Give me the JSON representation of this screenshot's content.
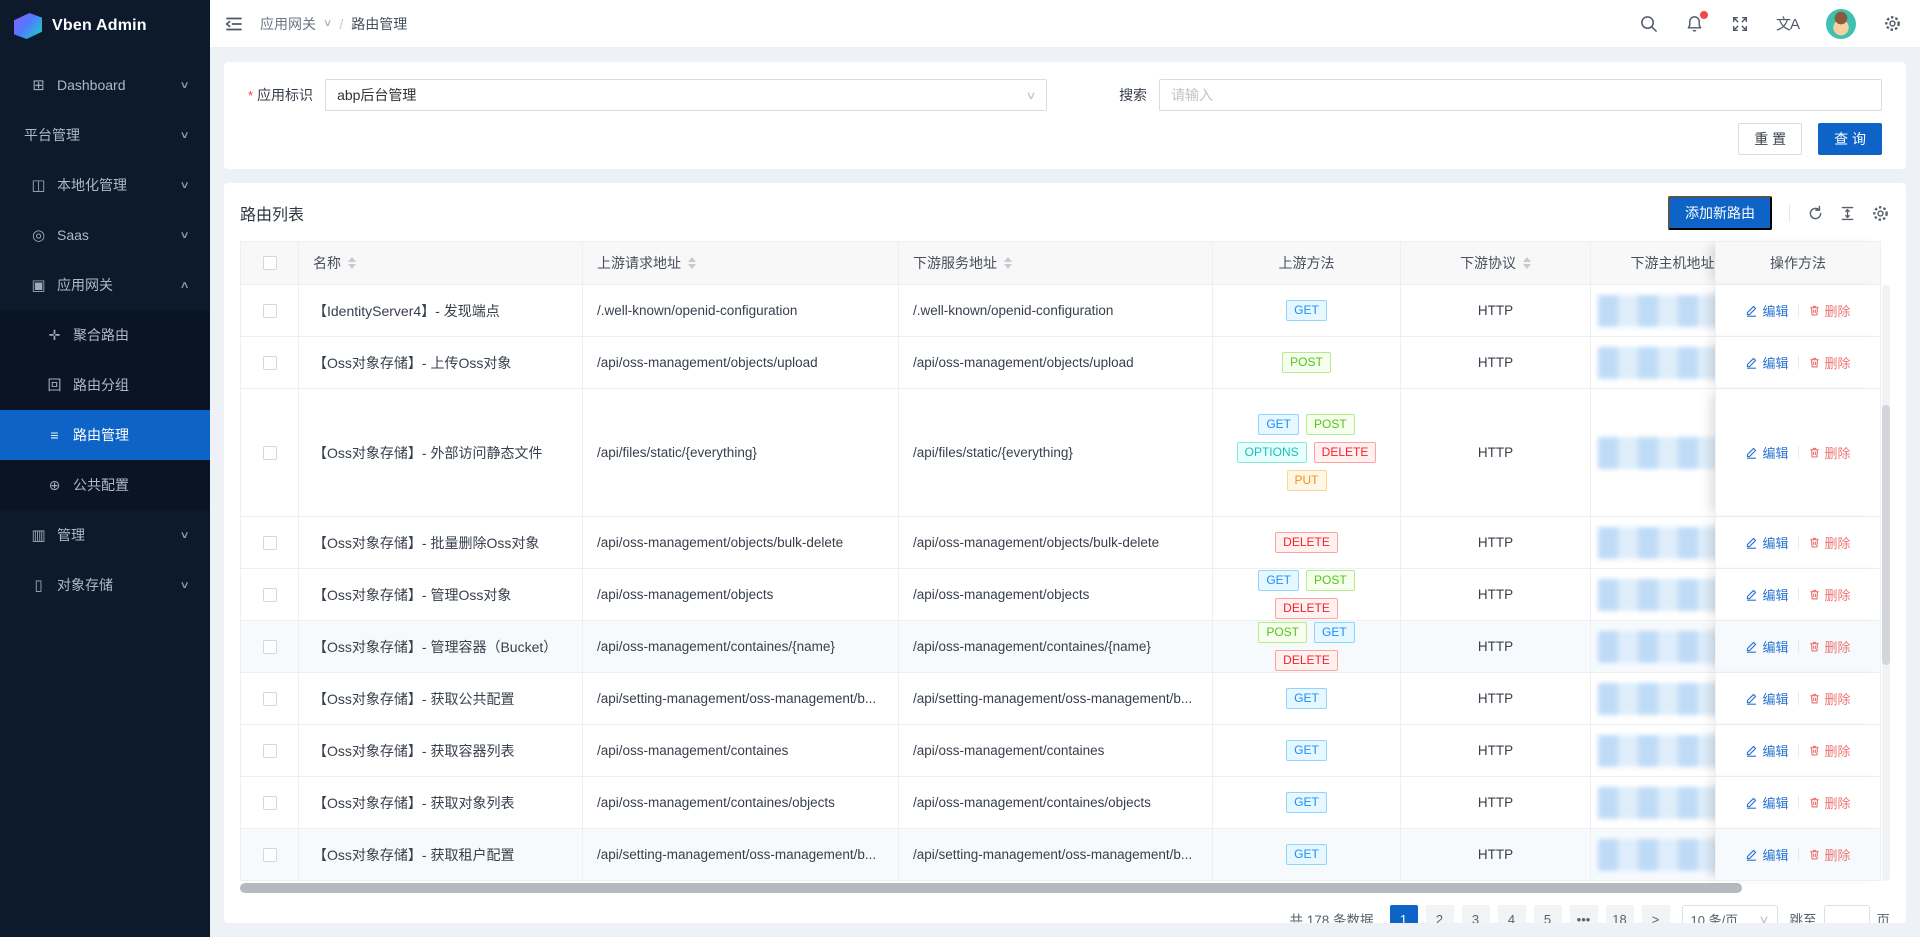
{
  "app": {
    "name": "Vben Admin"
  },
  "sidebar": {
    "items": [
      {
        "label": "Dashboard",
        "icon": "dashboard-icon",
        "caret": "down",
        "level": 1
      },
      {
        "label": "平台管理",
        "icon": null,
        "caret": "down",
        "level": 1
      },
      {
        "label": "本地化管理",
        "icon": "localization-icon",
        "caret": "down",
        "level": 1
      },
      {
        "label": "Saas",
        "icon": "saas-icon",
        "caret": "down",
        "level": 1
      },
      {
        "label": "应用网关",
        "icon": "gateway-icon",
        "caret": "up",
        "level": 1,
        "open": true
      },
      {
        "label": "聚合路由",
        "icon": "aggregate-route-icon",
        "level": 2
      },
      {
        "label": "路由分组",
        "icon": "route-group-icon",
        "level": 2
      },
      {
        "label": "路由管理",
        "icon": "route-manage-icon",
        "level": 2,
        "active": true
      },
      {
        "label": "公共配置",
        "icon": "public-config-icon",
        "level": 2
      },
      {
        "label": "管理",
        "icon": "manage-icon",
        "caret": "down",
        "level": 1
      },
      {
        "label": "对象存储",
        "icon": "object-storage-icon",
        "caret": "down",
        "level": 1
      }
    ]
  },
  "header": {
    "breadcrumb": {
      "parent": "应用网关",
      "separator": "/",
      "current": "路由管理"
    },
    "icons": [
      "search",
      "notification",
      "fullscreen",
      "locale",
      "avatar",
      "settings"
    ],
    "locale_glyph": "文A",
    "notification_badge": true
  },
  "filter": {
    "app_label": "应用标识",
    "app_value": "abp后台管理",
    "search_label": "搜索",
    "search_placeholder": "请输入",
    "reset_label": "重 置",
    "query_label": "查 询"
  },
  "table": {
    "title": "路由列表",
    "add_button_label": "添加新路由",
    "toolbar_icons": [
      "refresh",
      "column-height",
      "settings"
    ],
    "columns": [
      {
        "key": "checkbox",
        "label": "",
        "sortable": false
      },
      {
        "key": "name",
        "label": "名称",
        "sortable": true
      },
      {
        "key": "upstream",
        "label": "上游请求地址",
        "sortable": true
      },
      {
        "key": "downstream",
        "label": "下游服务地址",
        "sortable": true
      },
      {
        "key": "methods",
        "label": "上游方法",
        "sortable": false
      },
      {
        "key": "protocol",
        "label": "下游协议",
        "sortable": true
      },
      {
        "key": "host",
        "label": "下游主机地址",
        "sortable": false
      },
      {
        "key": "actions",
        "label": "操作方法",
        "sortable": false
      }
    ],
    "edit_label": "编辑",
    "delete_label": "删除",
    "rows": [
      {
        "name": "【IdentityServer4】- 发现端点",
        "upstream": "/.well-known/openid-configuration",
        "downstream": "/.well-known/openid-configuration",
        "methods": [
          "GET"
        ],
        "protocol": "HTTP",
        "host_redacted": true
      },
      {
        "name": "【Oss对象存储】- 上传Oss对象",
        "upstream": "/api/oss-management/objects/upload",
        "downstream": "/api/oss-management/objects/upload",
        "methods": [
          "POST"
        ],
        "protocol": "HTTP",
        "host_redacted": true
      },
      {
        "name": "【Oss对象存储】- 外部访问静态文件",
        "upstream": "/api/files/static/{everything}",
        "downstream": "/api/files/static/{everything}",
        "methods": [
          "GET",
          "POST",
          "OPTIONS",
          "DELETE",
          "PUT"
        ],
        "protocol": "HTTP",
        "host_redacted": true,
        "tall": true
      },
      {
        "name": "【Oss对象存储】- 批量删除Oss对象",
        "upstream": "/api/oss-management/objects/bulk-delete",
        "downstream": "/api/oss-management/objects/bulk-delete",
        "methods": [
          "DELETE"
        ],
        "protocol": "HTTP",
        "host_redacted": true
      },
      {
        "name": "【Oss对象存储】- 管理Oss对象",
        "upstream": "/api/oss-management/objects",
        "downstream": "/api/oss-management/objects",
        "methods": [
          "GET",
          "POST",
          "DELETE"
        ],
        "protocol": "HTTP",
        "host_redacted": true
      },
      {
        "name": "【Oss对象存储】- 管理容器（Bucket）",
        "upstream": "/api/oss-management/containes/{name}",
        "downstream": "/api/oss-management/containes/{name}",
        "methods": [
          "POST",
          "GET",
          "DELETE"
        ],
        "protocol": "HTTP",
        "host_redacted": true,
        "striped": true
      },
      {
        "name": "【Oss对象存储】- 获取公共配置",
        "upstream": "/api/setting-management/oss-management/b...",
        "downstream": "/api/setting-management/oss-management/b...",
        "methods": [
          "GET"
        ],
        "protocol": "HTTP",
        "host_redacted": true
      },
      {
        "name": "【Oss对象存储】- 获取容器列表",
        "upstream": "/api/oss-management/containes",
        "downstream": "/api/oss-management/containes",
        "methods": [
          "GET"
        ],
        "protocol": "HTTP",
        "host_redacted": true
      },
      {
        "name": "【Oss对象存储】- 获取对象列表",
        "upstream": "/api/oss-management/containes/objects",
        "downstream": "/api/oss-management/containes/objects",
        "methods": [
          "GET"
        ],
        "protocol": "HTTP",
        "host_redacted": true
      },
      {
        "name": "【Oss对象存储】- 获取租户配置",
        "upstream": "/api/setting-management/oss-management/b...",
        "downstream": "/api/setting-management/oss-management/b...",
        "methods": [
          "GET"
        ],
        "protocol": "HTTP",
        "host_redacted": true,
        "striped": true
      }
    ]
  },
  "pagination": {
    "total_label": "共 178 条数据",
    "pages": [
      "1",
      "2",
      "3",
      "4",
      "5",
      "•••",
      "18"
    ],
    "active_page": "1",
    "next_label": ">",
    "page_size_value": "10 条/页",
    "jump_label": "跳至",
    "jump_value": "",
    "page_unit": "页"
  },
  "colors": {
    "primary": "#0d63c6",
    "method_GET": "#1890ff",
    "method_POST": "#52c41a",
    "method_OPTIONS": "#13c2c2",
    "method_DELETE": "#f5222d",
    "method_PUT": "#fa8c16"
  }
}
